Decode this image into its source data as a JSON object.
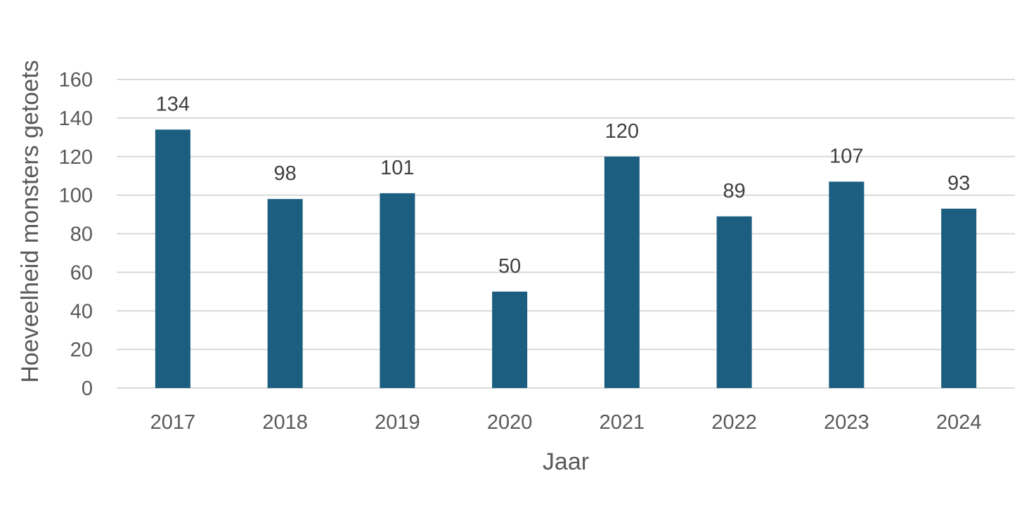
{
  "colors": {
    "bar": "#1b5e80",
    "gridline": "#d9d9d9",
    "text": "#595959",
    "label": "#404040"
  },
  "chart_data": {
    "type": "bar",
    "title": "",
    "xlabel": "Jaar",
    "ylabel": "Hoeveelheid monsters getoets",
    "categories": [
      "2017",
      "2018",
      "2019",
      "2020",
      "2021",
      "2022",
      "2023",
      "2024"
    ],
    "values": [
      134,
      98,
      101,
      50,
      120,
      89,
      107,
      93
    ],
    "data_labels": [
      "134",
      "98",
      "101",
      "50",
      "120",
      "89",
      "107",
      "93"
    ],
    "ylim": [
      0,
      160
    ],
    "yticks": [
      "0",
      "20",
      "40",
      "60",
      "80",
      "100",
      "120",
      "140",
      "160"
    ],
    "grid": true,
    "legend": "none"
  }
}
